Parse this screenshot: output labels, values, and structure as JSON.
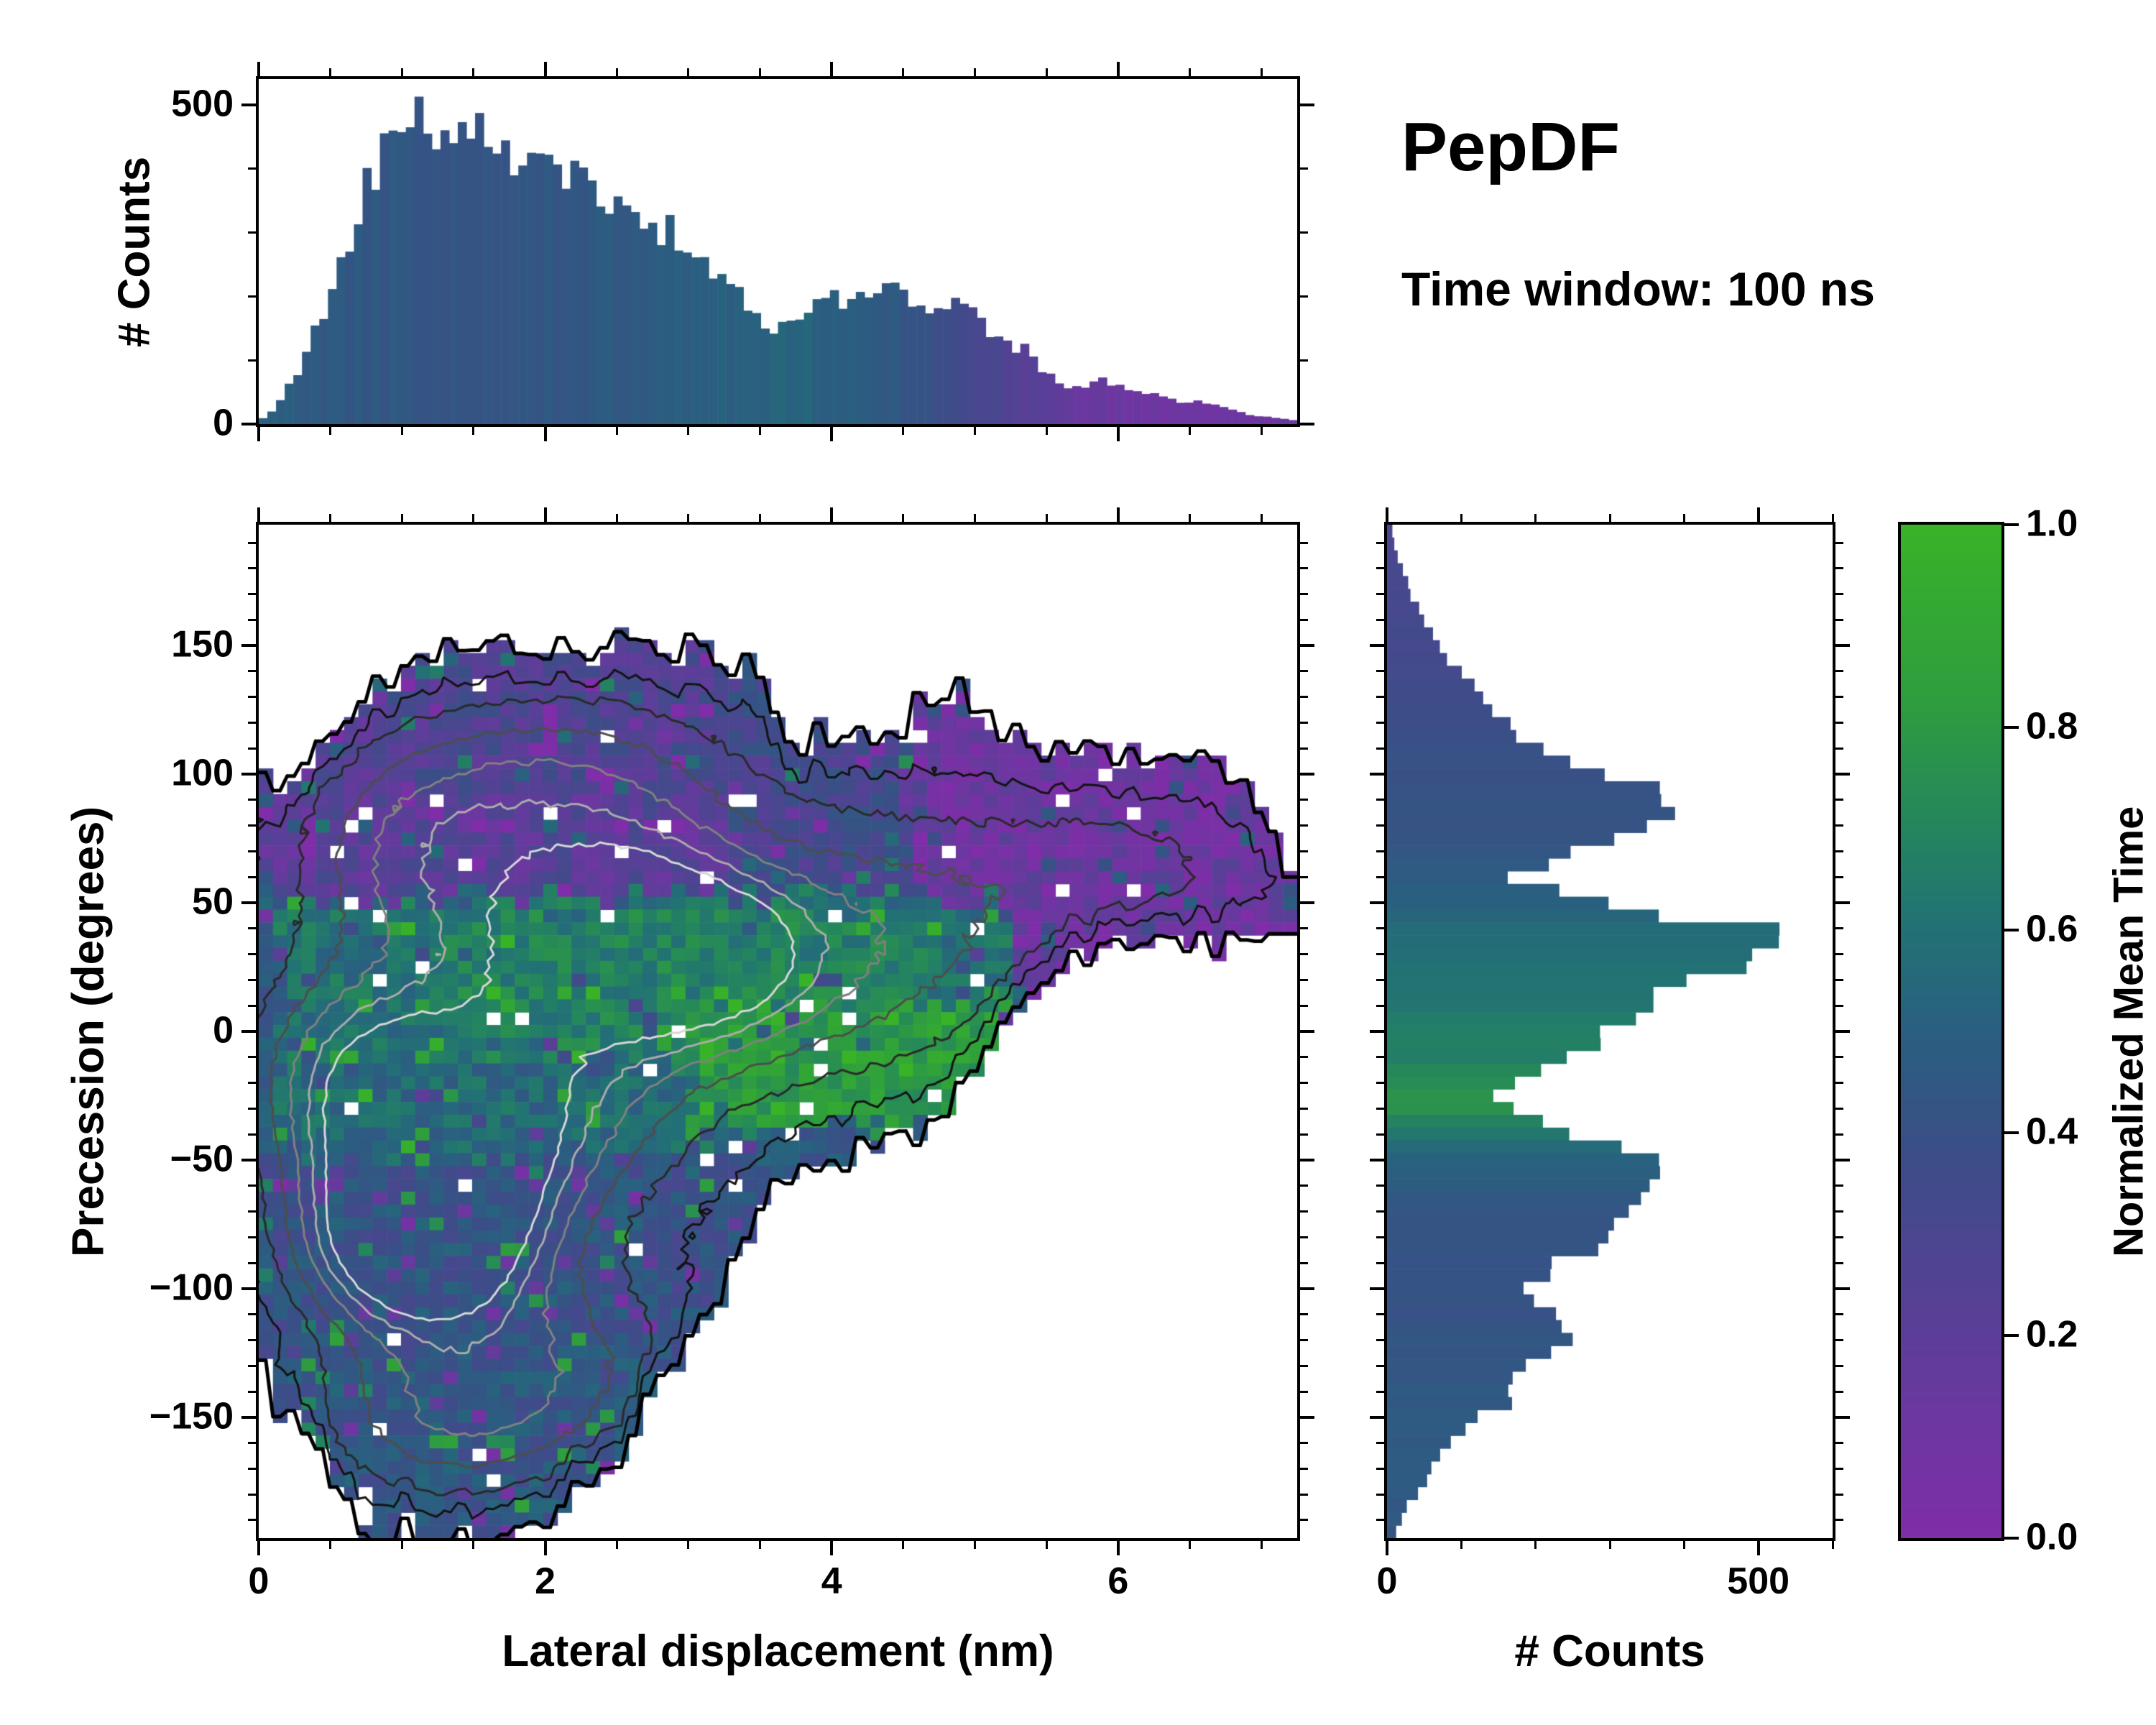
{
  "header": {
    "title": "PepDF",
    "subtitle": "Time window: 100 ns"
  },
  "style": {
    "background": "#ffffff",
    "axis_color": "#000000",
    "colormap": [
      [
        0,
        "#7f2da8"
      ],
      [
        0.12,
        "#6c37a0"
      ],
      [
        0.25,
        "#534294"
      ],
      [
        0.38,
        "#3b4e87"
      ],
      [
        0.5,
        "#2a5f80"
      ],
      [
        0.6,
        "#227175"
      ],
      [
        0.7,
        "#24855e"
      ],
      [
        0.82,
        "#2e9c40"
      ],
      [
        1,
        "#38b327"
      ]
    ]
  },
  "chart_data": [
    {
      "id": "top_histogram",
      "type": "bar",
      "orientation": "vertical",
      "ylabel": "# Counts",
      "xlim": [
        0,
        7.25
      ],
      "ylim": [
        0,
        540
      ],
      "n_bins": 120,
      "seed": 11,
      "noise": 0.09,
      "y_major": [
        {
          "v": 0,
          "label": "0"
        },
        {
          "v": 500,
          "label": "500"
        }
      ],
      "y_minor_step": 100,
      "x_major": [
        0,
        2,
        4,
        6
      ],
      "x_minor_step": 0.5,
      "counts_profile": [
        [
          0,
          4
        ],
        [
          0.1,
          20
        ],
        [
          0.2,
          55
        ],
        [
          0.3,
          95
        ],
        [
          0.35,
          130
        ],
        [
          0.45,
          170
        ],
        [
          0.55,
          240
        ],
        [
          0.65,
          290
        ],
        [
          0.75,
          370
        ],
        [
          0.85,
          420
        ],
        [
          0.95,
          465
        ],
        [
          1.05,
          495
        ],
        [
          1.15,
          480
        ],
        [
          1.25,
          465
        ],
        [
          1.35,
          450
        ],
        [
          1.5,
          455
        ],
        [
          1.65,
          435
        ],
        [
          1.8,
          425
        ],
        [
          2,
          415
        ],
        [
          2.15,
          395
        ],
        [
          2.3,
          385
        ],
        [
          2.45,
          355
        ],
        [
          2.6,
          330
        ],
        [
          2.75,
          310
        ],
        [
          2.9,
          300
        ],
        [
          3,
          280
        ],
        [
          3.1,
          255
        ],
        [
          3.2,
          235
        ],
        [
          3.35,
          205
        ],
        [
          3.5,
          165
        ],
        [
          3.6,
          150
        ],
        [
          3.75,
          170
        ],
        [
          3.9,
          205
        ],
        [
          4,
          195
        ],
        [
          4.1,
          185
        ],
        [
          4.25,
          215
        ],
        [
          4.4,
          230
        ],
        [
          4.5,
          210
        ],
        [
          4.6,
          185
        ],
        [
          4.75,
          175
        ],
        [
          4.9,
          195
        ],
        [
          5,
          165
        ],
        [
          5.1,
          140
        ],
        [
          5.2,
          130
        ],
        [
          5.35,
          115
        ],
        [
          5.5,
          80
        ],
        [
          5.6,
          60
        ],
        [
          5.75,
          55
        ],
        [
          5.9,
          70
        ],
        [
          6,
          60
        ],
        [
          6.1,
          50
        ],
        [
          6.25,
          45
        ],
        [
          6.4,
          35
        ],
        [
          6.55,
          38
        ],
        [
          6.7,
          28
        ],
        [
          6.85,
          18
        ],
        [
          7,
          12
        ],
        [
          7.25,
          6
        ]
      ],
      "color_value_profile": [
        [
          0,
          0.5
        ],
        [
          0.5,
          0.46
        ],
        [
          1,
          0.44
        ],
        [
          1.5,
          0.43
        ],
        [
          2,
          0.44
        ],
        [
          2.5,
          0.46
        ],
        [
          3,
          0.49
        ],
        [
          3.5,
          0.52
        ],
        [
          3.8,
          0.53
        ],
        [
          4.2,
          0.48
        ],
        [
          4.6,
          0.42
        ],
        [
          5,
          0.32
        ],
        [
          5.4,
          0.22
        ],
        [
          5.8,
          0.14
        ],
        [
          6.2,
          0.11
        ],
        [
          6.6,
          0.1
        ],
        [
          7.25,
          0.12
        ]
      ]
    },
    {
      "id": "joint_heatmap",
      "type": "heatmap",
      "xlabel": "Lateral displacement (nm)",
      "ylabel": "Precession (degrees)",
      "value_label": "Normalized Mean Time",
      "xlim": [
        0,
        7.25
      ],
      "ylim": [
        -197,
        197
      ],
      "x_major": [
        {
          "v": 0,
          "label": "0"
        },
        {
          "v": 2,
          "label": "2"
        },
        {
          "v": 4,
          "label": "4"
        },
        {
          "v": 6,
          "label": "6"
        }
      ],
      "x_minor_step": 0.5,
      "y_major": [
        {
          "v": -150,
          "label": "−150"
        },
        {
          "v": -100,
          "label": "−100"
        },
        {
          "v": -50,
          "label": "−50"
        },
        {
          "v": 0,
          "label": "0"
        },
        {
          "v": 50,
          "label": "50"
        },
        {
          "v": 100,
          "label": "100"
        },
        {
          "v": 150,
          "label": "150"
        }
      ],
      "y_minor_step": 10,
      "grid": [
        73,
        79
      ],
      "seed": 7,
      "base_value": 0.45,
      "value_noise": 0.11,
      "hole_fraction": 0.02,
      "edge_jitter": 14,
      "top_boundary": [
        [
          0,
          95
        ],
        [
          0.3,
          100
        ],
        [
          0.5,
          115
        ],
        [
          0.7,
          130
        ],
        [
          0.9,
          138
        ],
        [
          1.2,
          148
        ],
        [
          1.6,
          151
        ],
        [
          2.2,
          148
        ],
        [
          2.8,
          151
        ],
        [
          3.2,
          150
        ],
        [
          3.45,
          140
        ],
        [
          3.6,
          128
        ],
        [
          3.75,
          115
        ],
        [
          4.1,
          112
        ],
        [
          4.4,
          116
        ],
        [
          4.7,
          128
        ],
        [
          4.9,
          132
        ],
        [
          5.1,
          120
        ],
        [
          5.4,
          112
        ],
        [
          5.9,
          110
        ],
        [
          6.3,
          108
        ],
        [
          6.6,
          105
        ],
        [
          6.9,
          98
        ],
        [
          7.05,
          80
        ],
        [
          7.25,
          50
        ]
      ],
      "bottom_boundary": [
        [
          0,
          -118
        ],
        [
          0.15,
          -145
        ],
        [
          0.35,
          -160
        ],
        [
          0.55,
          -178
        ],
        [
          0.8,
          -192
        ],
        [
          1.2,
          -196
        ],
        [
          1.8,
          -196
        ],
        [
          2.1,
          -188
        ],
        [
          2.3,
          -178
        ],
        [
          2.5,
          -170
        ],
        [
          2.7,
          -150
        ],
        [
          2.85,
          -132
        ],
        [
          3,
          -115
        ],
        [
          3.2,
          -105
        ],
        [
          3.35,
          -92
        ],
        [
          3.5,
          -70
        ],
        [
          3.65,
          -58
        ],
        [
          3.9,
          -55
        ],
        [
          4.2,
          -48
        ],
        [
          4.5,
          -42
        ],
        [
          4.8,
          -32
        ],
        [
          5,
          -22
        ],
        [
          5.2,
          -5
        ],
        [
          5.35,
          12
        ],
        [
          5.5,
          25
        ],
        [
          5.7,
          28
        ],
        [
          6.2,
          30
        ],
        [
          6.6,
          32
        ],
        [
          7,
          35
        ],
        [
          7.25,
          42
        ]
      ],
      "patches": [
        {
          "x": [
            0,
            3.35
          ],
          "y": [
            48,
            170
          ],
          "v": 0.22
        },
        {
          "x": [
            0.9,
            3.4
          ],
          "y": [
            92,
            160
          ],
          "v": 0.28
        },
        {
          "x": [
            3.3,
            5
          ],
          "y": [
            50,
            140
          ],
          "v": 0.33
        },
        {
          "x": [
            0.2,
            5.3
          ],
          "y": [
            -12,
            52
          ],
          "v": 0.6
        },
        {
          "x": [
            1.2,
            4.7
          ],
          "y": [
            -8,
            46
          ],
          "v": 0.68
        },
        {
          "x": [
            2.9,
            5.25
          ],
          "y": [
            -35,
            10
          ],
          "v": 0.82
        },
        {
          "x": [
            0,
            3
          ],
          "y": [
            -48,
            -14
          ],
          "v": 0.56
        },
        {
          "x": [
            0,
            3.9
          ],
          "y": [
            -200,
            -52
          ],
          "v": 0.4
        },
        {
          "x": [
            0.4,
            2.8
          ],
          "y": [
            -112,
            -60
          ],
          "v": 0.43
        },
        {
          "x": [
            0.3,
            2.9
          ],
          "y": [
            -200,
            -120
          ],
          "v": 0.44
        },
        {
          "x": [
            4.55,
            7.3
          ],
          "y": [
            52,
            128
          ],
          "v": 0.12
        },
        {
          "x": [
            5.3,
            7.3
          ],
          "y": [
            8,
            62
          ],
          "v": 0.13
        }
      ],
      "contour_peaks": [
        [
          1.2,
          -60,
          0.55,
          30,
          0.95
        ],
        [
          1.05,
          -85,
          0.5,
          22,
          0.75
        ],
        [
          1.6,
          -35,
          0.8,
          30,
          0.5
        ],
        [
          2.5,
          38,
          0.6,
          28,
          0.75
        ],
        [
          3.2,
          28,
          0.5,
          22,
          0.55
        ],
        [
          1.9,
          12,
          1.1,
          45,
          0.45
        ],
        [
          2.2,
          98,
          0.9,
          28,
          0.42
        ],
        [
          1.1,
          70,
          0.6,
          30,
          0.38
        ],
        [
          4.3,
          35,
          0.8,
          38,
          0.45
        ],
        [
          6,
          62,
          0.8,
          24,
          0.3
        ],
        [
          1.3,
          -150,
          0.7,
          25,
          0.45
        ],
        [
          2.1,
          -125,
          0.7,
          28,
          0.35
        ],
        [
          0.7,
          -15,
          0.5,
          25,
          0.4
        ]
      ],
      "contour_levels": [
        {
          "level": 0.12,
          "color": "#141414",
          "width": 3
        },
        {
          "level": 0.25,
          "color": "#2a2a2a",
          "width": 3
        },
        {
          "level": 0.4,
          "color": "#4d4d4d",
          "width": 3
        },
        {
          "level": 0.55,
          "color": "#808080",
          "width": 3
        },
        {
          "level": 0.7,
          "color": "#ababab",
          "width": 3
        },
        {
          "level": 0.85,
          "color": "#d6d6d6",
          "width": 3
        }
      ],
      "outline": {
        "color": "#000000",
        "width": 5
      }
    },
    {
      "id": "right_histogram",
      "type": "bar",
      "orientation": "horizontal",
      "xlabel": "# Counts",
      "xlim": [
        0,
        600
      ],
      "ylim": [
        -197,
        197
      ],
      "n_bins": 79,
      "seed": 29,
      "noise": 0.08,
      "x_major": [
        {
          "v": 0,
          "label": "0"
        },
        {
          "v": 500,
          "label": "500"
        }
      ],
      "x_minor_step": 100,
      "y_major": [
        -150,
        -100,
        -50,
        0,
        50,
        100,
        150
      ],
      "y_minor_step": 10,
      "counts_profile": [
        [
          -197,
          10
        ],
        [
          -190,
          18
        ],
        [
          -183,
          30
        ],
        [
          -175,
          52
        ],
        [
          -167,
          70
        ],
        [
          -158,
          88
        ],
        [
          -150,
          130
        ],
        [
          -143,
          175
        ],
        [
          -137,
          172
        ],
        [
          -130,
          190
        ],
        [
          -122,
          228
        ],
        [
          -114,
          242
        ],
        [
          -106,
          205
        ],
        [
          -99,
          188
        ],
        [
          -92,
          222
        ],
        [
          -84,
          288
        ],
        [
          -77,
          308
        ],
        [
          -70,
          328
        ],
        [
          -62,
          362
        ],
        [
          -54,
          382
        ],
        [
          -47,
          338
        ],
        [
          -40,
          262
        ],
        [
          -33,
          196
        ],
        [
          -26,
          152
        ],
        [
          -19,
          162
        ],
        [
          -11,
          232
        ],
        [
          -4,
          295
        ],
        [
          3,
          315
        ],
        [
          10,
          342
        ],
        [
          18,
          395
        ],
        [
          25,
          462
        ],
        [
          33,
          528
        ],
        [
          40,
          492
        ],
        [
          46,
          362
        ],
        [
          53,
          232
        ],
        [
          60,
          168
        ],
        [
          68,
          225
        ],
        [
          75,
          335
        ],
        [
          83,
          392
        ],
        [
          90,
          398
        ],
        [
          98,
          335
        ],
        [
          105,
          258
        ],
        [
          112,
          198
        ],
        [
          120,
          168
        ],
        [
          128,
          135
        ],
        [
          136,
          112
        ],
        [
          144,
          88
        ],
        [
          152,
          62
        ],
        [
          162,
          45
        ],
        [
          172,
          30
        ],
        [
          182,
          18
        ],
        [
          190,
          10
        ],
        [
          197,
          5
        ]
      ],
      "color_value_profile": [
        [
          -197,
          0.44
        ],
        [
          -170,
          0.47
        ],
        [
          -150,
          0.46
        ],
        [
          -130,
          0.44
        ],
        [
          -110,
          0.42
        ],
        [
          -90,
          0.41
        ],
        [
          -70,
          0.44
        ],
        [
          -55,
          0.5
        ],
        [
          -45,
          0.56
        ],
        [
          -35,
          0.68
        ],
        [
          -28,
          0.78
        ],
        [
          -20,
          0.72
        ],
        [
          -10,
          0.68
        ],
        [
          0,
          0.66
        ],
        [
          10,
          0.62
        ],
        [
          20,
          0.6
        ],
        [
          30,
          0.58
        ],
        [
          40,
          0.56
        ],
        [
          50,
          0.5
        ],
        [
          60,
          0.46
        ],
        [
          75,
          0.43
        ],
        [
          90,
          0.42
        ],
        [
          105,
          0.4
        ],
        [
          120,
          0.38
        ],
        [
          135,
          0.35
        ],
        [
          150,
          0.33
        ],
        [
          170,
          0.32
        ],
        [
          197,
          0.3
        ]
      ]
    },
    {
      "id": "colorbar",
      "type": "colorbar",
      "label": "Normalized Mean Time",
      "lim": [
        0,
        1
      ],
      "major": [
        {
          "v": 0,
          "label": "0.0"
        },
        {
          "v": 0.2,
          "label": "0.2"
        },
        {
          "v": 0.4,
          "label": "0.4"
        },
        {
          "v": 0.6,
          "label": "0.6"
        },
        {
          "v": 0.8,
          "label": "0.8"
        },
        {
          "v": 1,
          "label": "1.0"
        }
      ]
    }
  ]
}
